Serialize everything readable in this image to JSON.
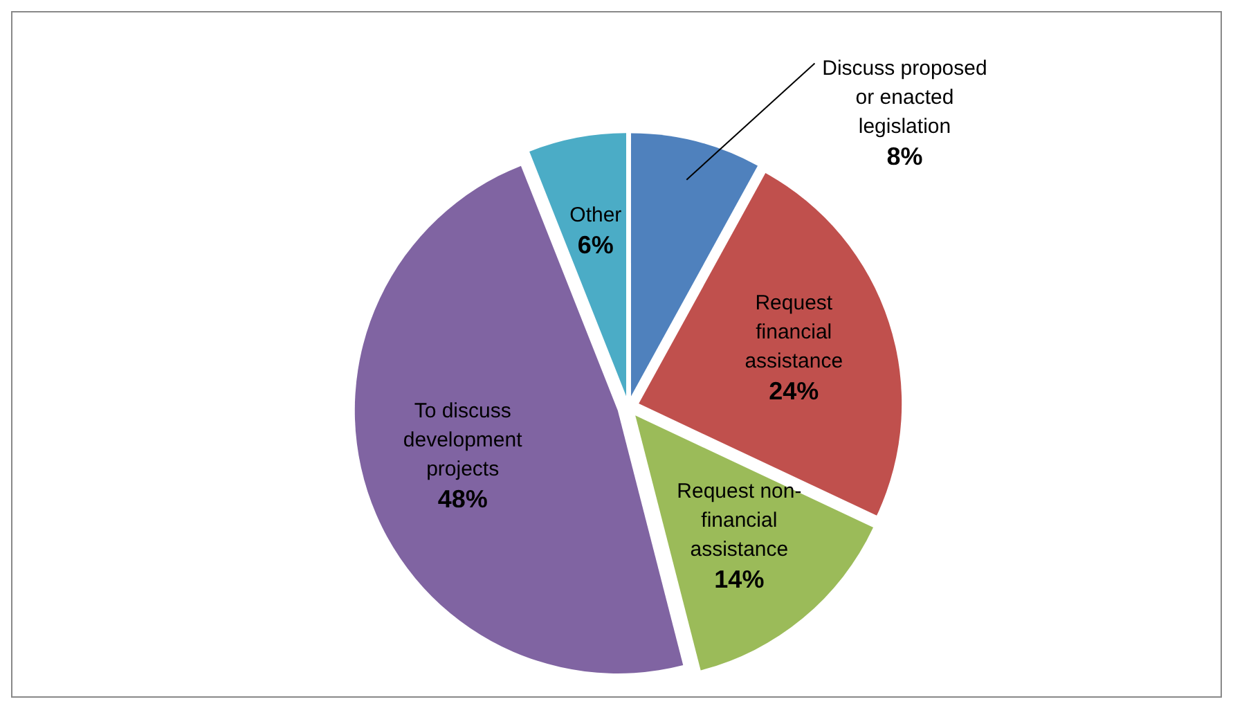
{
  "chart_data": {
    "type": "pie",
    "categories": [
      "Discuss proposed or enacted legislation",
      "Request financial assistance",
      "Request non-financial assistance",
      "To discuss development projects",
      "Other"
    ],
    "values": [
      8,
      24,
      14,
      48,
      6
    ],
    "value_labels": [
      "8%",
      "24%",
      "14%",
      "48%",
      "6%"
    ],
    "colors": [
      "#4f81bd",
      "#c0504d",
      "#9bbb59",
      "#8064a2",
      "#4bacc6"
    ],
    "legend": false
  }
}
